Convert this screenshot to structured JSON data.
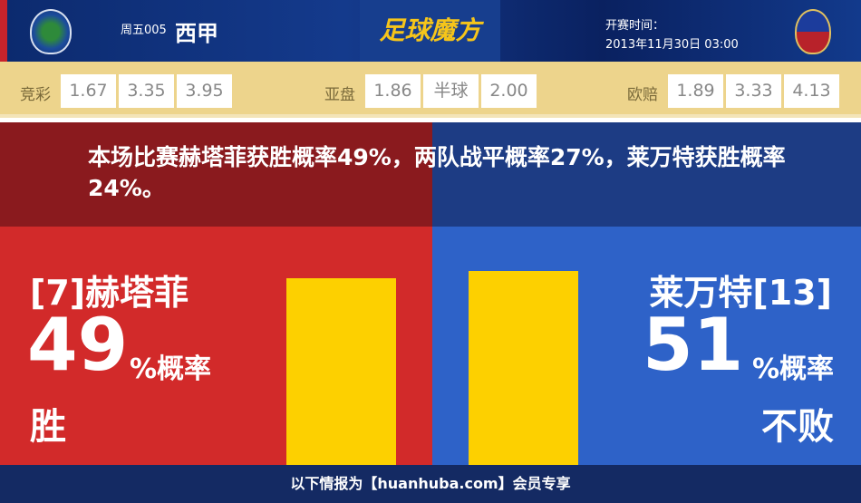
{
  "header": {
    "round": "周五005",
    "league": "西甲",
    "brand": "足球魔方",
    "kickoff_label": "开赛时间：",
    "kickoff_time": "2013年11月30日 03:00"
  },
  "odds": {
    "jingcai": {
      "label": "竞彩",
      "values": [
        "1.67",
        "3.35",
        "3.95"
      ]
    },
    "yapan": {
      "label": "亚盘",
      "values": [
        "1.86",
        "半球",
        "2.00"
      ]
    },
    "ouzhi": {
      "label": "欧赔",
      "values": [
        "1.89",
        "3.33",
        "4.13"
      ]
    }
  },
  "summary": "本场比赛赫塔菲获胜概率49%，两队战平概率27%，莱万特获胜概率24%。",
  "home": {
    "name": "[7]赫塔菲",
    "pct": "49",
    "unit": "%概率",
    "result": "胜",
    "bar_percent": 49,
    "color": "#d22a2a"
  },
  "away": {
    "name": "莱万特[13]",
    "pct": "51",
    "unit": "%概率",
    "result": "不败",
    "bar_percent": 51,
    "color": "#2e62c8"
  },
  "bar_color": "#fdd000",
  "footer": "以下情报为【huanhuba.com】会员专享"
}
